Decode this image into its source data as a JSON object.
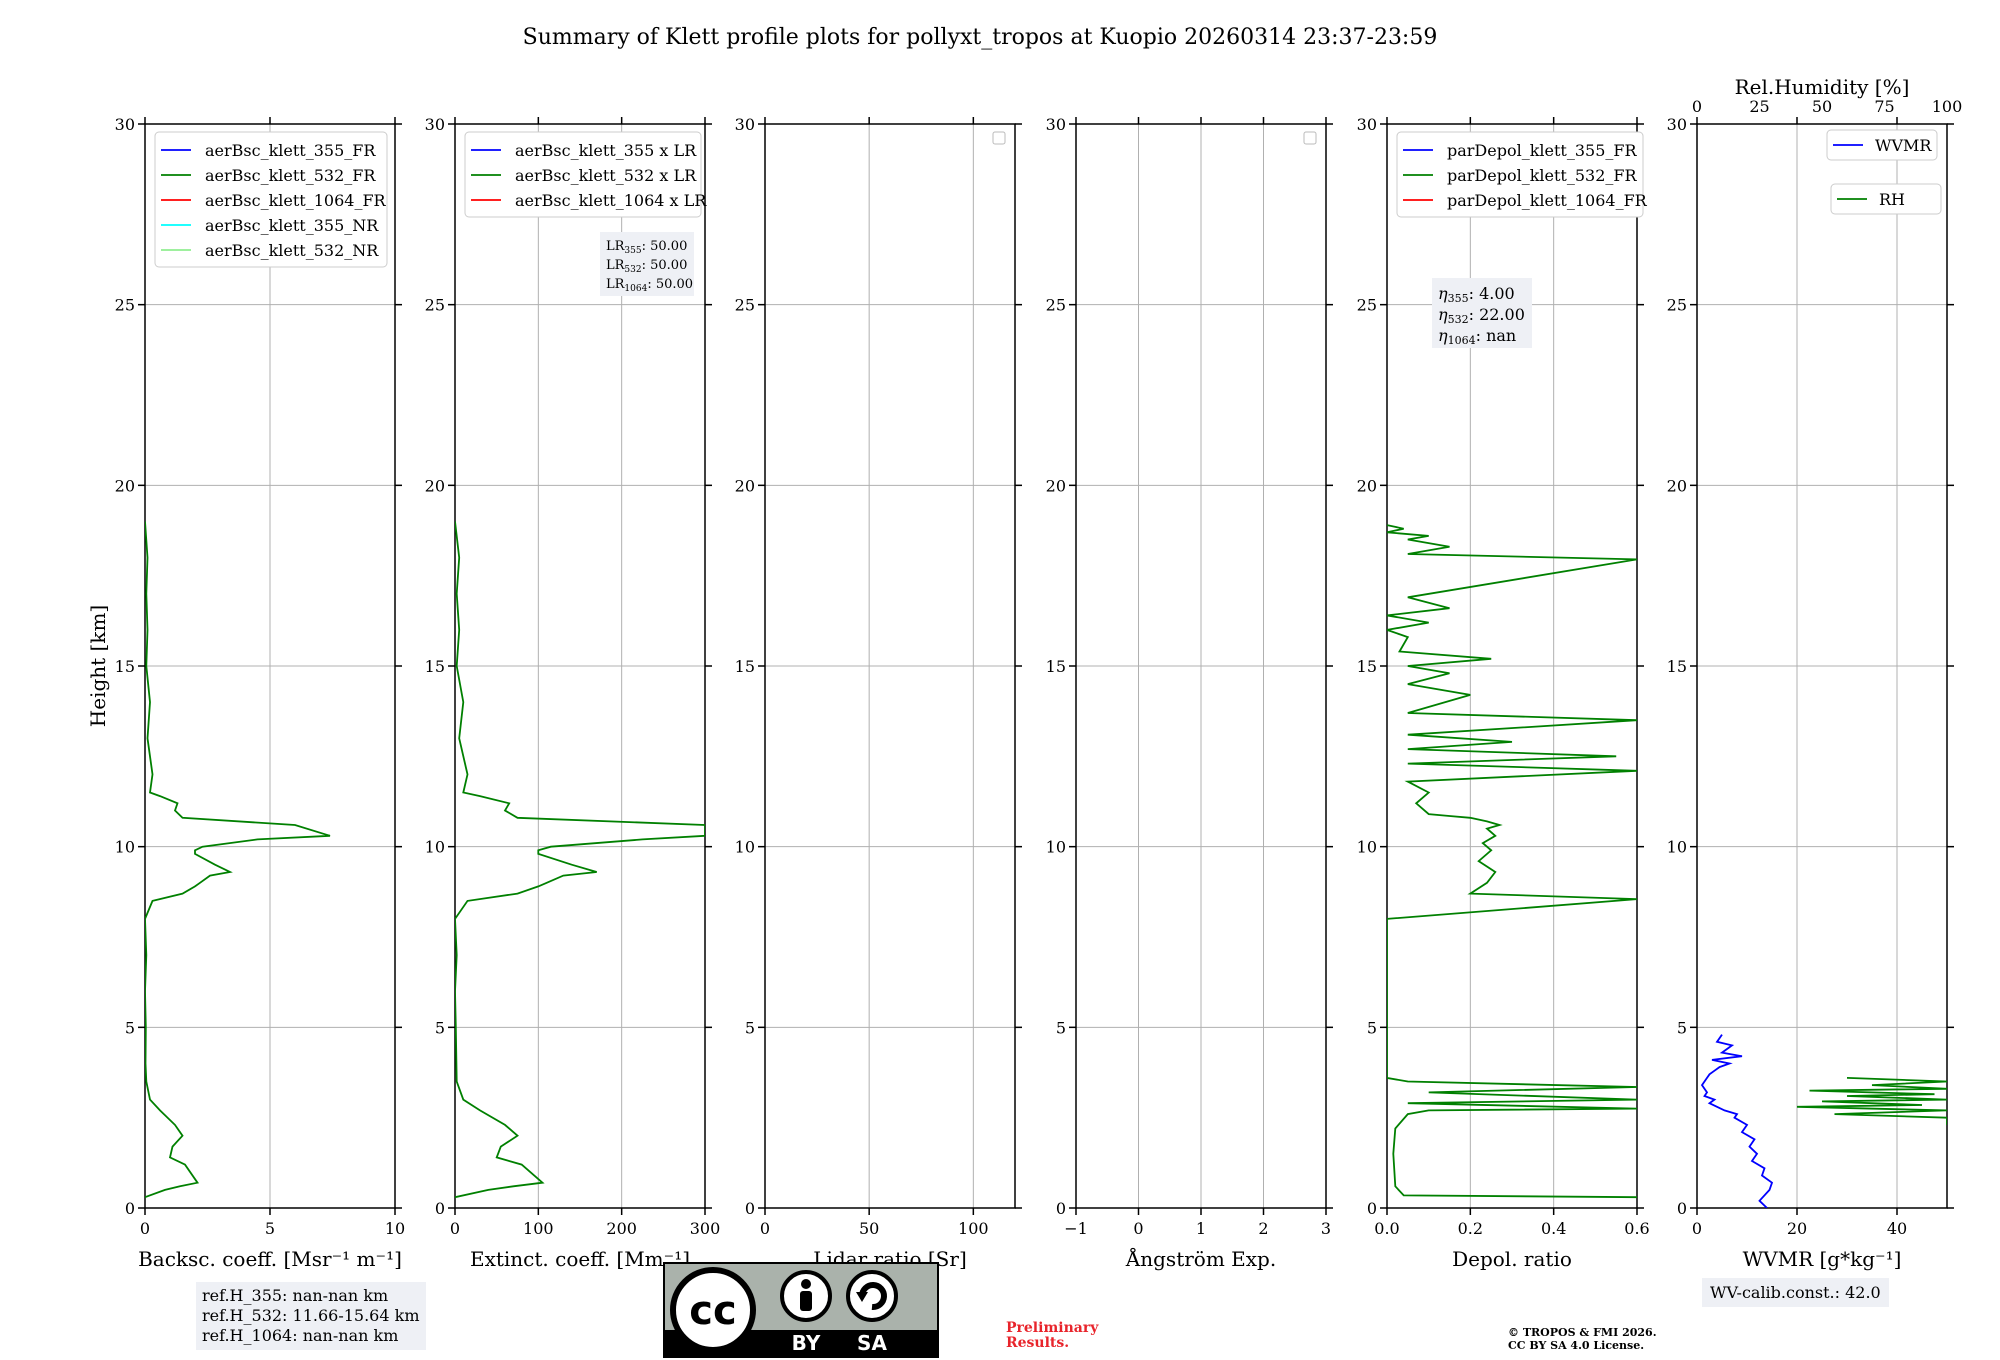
{
  "title": "Summary of Klett profile plots for pollyxt_tropos at Kuopio 20260314 23:37-23:59",
  "chart_data": [
    {
      "type": "line",
      "id": "bsc",
      "xlabel": "Backsc. coeff. [Msr⁻¹ m⁻¹]",
      "ylabel": "Height [km]",
      "xlim": [
        0,
        10
      ],
      "ylim": [
        0,
        30
      ],
      "xticks": [
        "0",
        "5",
        "10"
      ],
      "xtick_values": [
        0,
        5,
        10
      ],
      "yticks": [
        "0",
        "5",
        "10",
        "15",
        "20",
        "25",
        "30"
      ],
      "legend": [
        {
          "label": "aerBsc_klett_355_FR",
          "color": "#0000ff"
        },
        {
          "label": "aerBsc_klett_532_FR",
          "color": "#008000"
        },
        {
          "label": "aerBsc_klett_1064_FR",
          "color": "#ff0000"
        },
        {
          "label": "aerBsc_klett_355_NR",
          "color": "#00ffff"
        },
        {
          "label": "aerBsc_klett_532_NR",
          "color": "#90ee90"
        }
      ],
      "series": [
        {
          "name": "aerBsc_klett_532_FR",
          "color": "#008000",
          "x": [
            0.0,
            0.8,
            1.4,
            2.1,
            1.6,
            1.0,
            1.1,
            1.5,
            1.2,
            0.6,
            0.2,
            0.05,
            0.02,
            0.03,
            0.0,
            0.05,
            0.0,
            0.3,
            1.5,
            2.0,
            2.2,
            2.6,
            3.4,
            2.8,
            2.0,
            2.0,
            2.3,
            4.5,
            7.4,
            6.0,
            1.5,
            1.2,
            1.3,
            0.6,
            0.2,
            0.3,
            0.1,
            0.2,
            0.05,
            0.1,
            0.05,
            0.1,
            0.0
          ],
          "y": [
            0.3,
            0.5,
            0.6,
            0.7,
            1.2,
            1.4,
            1.7,
            2.0,
            2.3,
            2.7,
            3.0,
            3.5,
            4.0,
            5.0,
            6.0,
            7.0,
            8.0,
            8.5,
            8.7,
            8.9,
            9.0,
            9.2,
            9.3,
            9.5,
            9.8,
            9.9,
            10.0,
            10.2,
            10.3,
            10.6,
            10.8,
            11.0,
            11.2,
            11.4,
            11.5,
            12.0,
            13.0,
            14.0,
            15.0,
            16.0,
            17.0,
            18.0,
            19.0
          ]
        }
      ],
      "info_box": [
        "ref.H_355: nan-nan km",
        "ref.H_532: 11.66-15.64 km",
        "ref.H_1064: nan-nan km"
      ]
    },
    {
      "type": "line",
      "id": "ext",
      "xlabel": "Extinct. coeff. [Mm⁻¹]",
      "xlim": [
        0,
        300
      ],
      "ylim": [
        0,
        30
      ],
      "xticks": [
        "0",
        "100",
        "200",
        "300"
      ],
      "xtick_values": [
        0,
        100,
        200,
        300
      ],
      "yticks": [
        "0",
        "5",
        "10",
        "15",
        "20",
        "25",
        "30"
      ],
      "legend": [
        {
          "label": "aerBsc_klett_355 x LR",
          "color": "#0000ff"
        },
        {
          "label": "aerBsc_klett_532 x LR",
          "color": "#008000"
        },
        {
          "label": "aerBsc_klett_1064 x LR",
          "color": "#ff0000"
        }
      ],
      "lr_box": [
        {
          "sym": "LR",
          "sub": "355",
          "val": ": 50.00"
        },
        {
          "sym": "LR",
          "sub": "532",
          "val": ": 50.00"
        },
        {
          "sym": "LR",
          "sub": "1064",
          "val": ": 50.00"
        }
      ],
      "series": [
        {
          "name": "aerBsc_klett_532 x LR",
          "color": "#008000",
          "x": [
            0.0,
            40,
            70,
            105,
            80,
            50,
            55,
            75,
            60,
            30,
            10,
            2,
            1,
            0,
            2,
            0,
            15,
            75,
            100,
            110,
            130,
            170,
            140,
            100,
            100,
            115,
            225,
            300,
            300,
            75,
            60,
            65,
            30,
            10,
            15,
            5,
            10,
            2,
            5,
            2,
            5,
            0
          ],
          "y": [
            0.3,
            0.5,
            0.6,
            0.7,
            1.2,
            1.4,
            1.7,
            2.0,
            2.3,
            2.7,
            3.0,
            3.5,
            5.0,
            6.0,
            7.0,
            8.0,
            8.5,
            8.7,
            8.9,
            9.0,
            9.2,
            9.3,
            9.5,
            9.8,
            9.9,
            10.0,
            10.2,
            10.3,
            10.6,
            10.8,
            11.0,
            11.2,
            11.4,
            11.5,
            12.0,
            13.0,
            14.0,
            15.0,
            16.0,
            17.0,
            18.0,
            19.0
          ]
        }
      ]
    },
    {
      "type": "line",
      "id": "lr",
      "xlabel": "Lidar ratio [Sr]",
      "xlim": [
        0,
        120
      ],
      "ylim": [
        0,
        30
      ],
      "xticks": [
        "0",
        "50",
        "100"
      ],
      "xtick_values": [
        0,
        50,
        100
      ],
      "yticks": [
        "0",
        "5",
        "10",
        "15",
        "20",
        "25",
        "30"
      ],
      "series": []
    },
    {
      "type": "line",
      "id": "ang",
      "xlabel": "Ångström Exp.",
      "xlim": [
        -1,
        3
      ],
      "ylim": [
        0,
        30
      ],
      "xticks": [
        "−1",
        "0",
        "1",
        "2",
        "3"
      ],
      "xtick_values": [
        -1,
        0,
        1,
        2,
        3
      ],
      "yticks": [
        "0",
        "5",
        "10",
        "15",
        "20",
        "25",
        "30"
      ],
      "series": []
    },
    {
      "type": "line",
      "id": "depol",
      "xlabel": "Depol. ratio",
      "xlim": [
        0,
        0.6
      ],
      "ylim": [
        0,
        30
      ],
      "xticks": [
        "0.0",
        "0.2",
        "0.4",
        "0.6"
      ],
      "xtick_values": [
        0,
        0.2,
        0.4,
        0.6
      ],
      "yticks": [
        "0",
        "5",
        "10",
        "15",
        "20",
        "25",
        "30"
      ],
      "legend": [
        {
          "label": "parDepol_klett_355_FR",
          "color": "#0000ff"
        },
        {
          "label": "parDepol_klett_532_FR",
          "color": "#008000"
        },
        {
          "label": "parDepol_klett_1064_FR",
          "color": "#ff0000"
        }
      ],
      "eta_box": [
        {
          "sub": "355",
          "val": ": 4.00"
        },
        {
          "sub": "532",
          "val": ": 22.00"
        },
        {
          "sub": "1064",
          "val": ": nan"
        }
      ],
      "series": [
        {
          "name": "parDepol_klett_532_FR",
          "color": "#008000",
          "x": [
            0.6,
            0.04,
            0.02,
            0.015,
            0.02,
            0.05,
            0.1,
            0.6,
            0.05,
            0.6,
            0.1,
            0.6,
            0.05,
            0.0,
            0.0,
            0.0,
            0.6,
            0.2,
            0.24,
            0.26,
            0.22,
            0.25,
            0.23,
            0.26,
            0.24,
            0.27,
            0.24,
            0.2,
            0.15,
            0.1,
            0.07,
            0.1,
            0.05,
            0.6,
            0.05,
            0.55,
            0.05,
            0.3,
            0.05,
            0.6,
            0.05,
            0.2,
            0.05,
            0.15,
            0.05,
            0.25,
            0.03,
            0.05,
            0.0,
            0.1,
            0.0,
            0.15,
            0.05,
            0.6,
            0.05,
            0.15,
            0.05,
            0.1,
            0.0,
            0.04,
            0.0
          ],
          "y": [
            0.3,
            0.35,
            0.6,
            1.5,
            2.2,
            2.6,
            2.7,
            2.75,
            2.9,
            3.0,
            3.2,
            3.35,
            3.5,
            3.6,
            6.8,
            8.0,
            8.55,
            8.7,
            9.0,
            9.3,
            9.6,
            9.9,
            10.1,
            10.3,
            10.5,
            10.6,
            10.7,
            10.8,
            10.85,
            10.9,
            11.2,
            11.5,
            11.8,
            12.1,
            12.3,
            12.5,
            12.7,
            12.9,
            13.1,
            13.5,
            13.7,
            14.2,
            14.5,
            14.8,
            15.0,
            15.2,
            15.4,
            15.8,
            16.0,
            16.2,
            16.4,
            16.6,
            16.9,
            17.95,
            18.1,
            18.3,
            18.5,
            18.6,
            18.7,
            18.8,
            18.9
          ]
        }
      ]
    },
    {
      "type": "line",
      "id": "wv",
      "xlabel": "WVMR [g*kg⁻¹]",
      "x2label": "Rel.Humidity [%]",
      "xlim": [
        0,
        50
      ],
      "x2lim": [
        0,
        100
      ],
      "ylim": [
        0,
        30
      ],
      "xticks": [
        "0",
        "20",
        "40"
      ],
      "xtick_values": [
        0,
        20,
        40
      ],
      "x2ticks": [
        "0",
        "25",
        "50",
        "75",
        "100"
      ],
      "x2tick_values": [
        0,
        25,
        50,
        75,
        100
      ],
      "yticks": [
        "0",
        "5",
        "10",
        "15",
        "20",
        "25",
        "30"
      ],
      "legend": [
        {
          "label": "WVMR",
          "color": "#0000ff"
        },
        {
          "label": "RH",
          "color": "#008000"
        }
      ],
      "wv_box": "WV-calib.const.: 42.0",
      "series": [
        {
          "name": "WVMR",
          "color": "#0000ff",
          "axis": "x",
          "x": [
            14.0,
            12.5,
            14.5,
            15.0,
            13.0,
            13.5,
            11.0,
            12.0,
            10.5,
            11.5,
            9.0,
            10.0,
            7.5,
            8.0,
            5.5,
            4.0,
            2.5,
            3.5,
            1.5,
            2.0,
            1.0,
            2.0,
            2.5,
            3.5,
            4.5,
            6.5,
            3.0,
            9.0,
            5.0,
            7.0,
            4.0,
            5.0
          ],
          "y": [
            0.0,
            0.2,
            0.5,
            0.7,
            0.9,
            1.1,
            1.3,
            1.5,
            1.7,
            1.9,
            2.1,
            2.3,
            2.5,
            2.6,
            2.7,
            2.8,
            2.9,
            3.0,
            3.1,
            3.2,
            3.4,
            3.6,
            3.7,
            3.8,
            3.9,
            4.0,
            4.1,
            4.2,
            4.3,
            4.5,
            4.6,
            4.8
          ]
        },
        {
          "name": "RH",
          "color": "#008000",
          "axis": "x2",
          "x": [
            100,
            100,
            55,
            100,
            40,
            90,
            50,
            100,
            60,
            95,
            45,
            100,
            70,
            100,
            60
          ],
          "y": [
            2.3,
            2.5,
            2.6,
            2.7,
            2.8,
            2.85,
            2.95,
            3.0,
            3.1,
            3.15,
            3.25,
            3.3,
            3.4,
            3.5,
            3.6
          ]
        }
      ]
    }
  ],
  "license": {
    "by": "BY",
    "sa": "SA",
    "cc": "cc"
  },
  "footer": {
    "prelim_line1": "Preliminary",
    "prelim_line2": "Results.",
    "copyright_line1": "© TROPOS & FMI 2026.",
    "copyright_line2": "CC BY SA 4.0 License."
  },
  "colors": {
    "blue": "#0000ff",
    "green": "#008000",
    "red": "#ff0000",
    "cyan": "#00ffff",
    "lightgreen": "#90ee90",
    "grid": "#b0b0b0",
    "box": "#eef0f5"
  }
}
